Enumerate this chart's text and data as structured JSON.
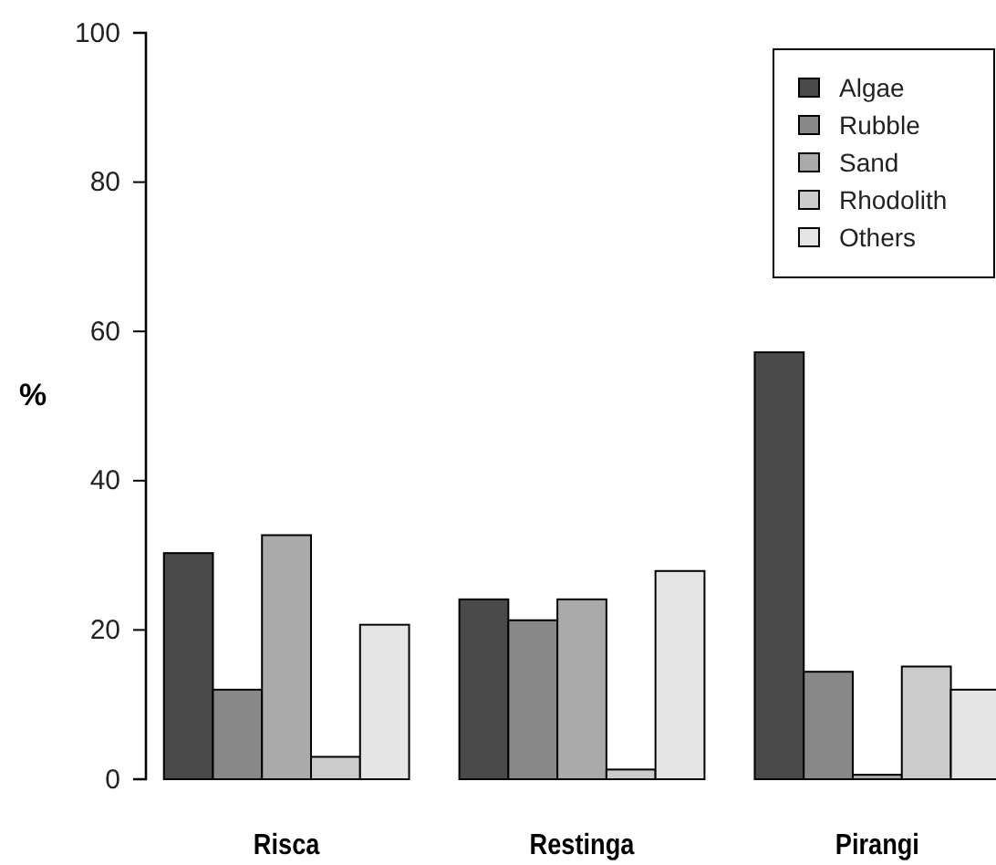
{
  "chart_data": {
    "type": "bar",
    "ylabel": "%",
    "categories": [
      "Risca",
      "Restinga",
      "Pirangi"
    ],
    "series": [
      {
        "name": "Algae",
        "color": "#4a4a4a",
        "values": [
          30.3,
          24.1,
          57.2
        ]
      },
      {
        "name": "Rubble",
        "color": "#888888",
        "values": [
          12.0,
          21.3,
          14.4
        ]
      },
      {
        "name": "Sand",
        "color": "#aaaaaa",
        "values": [
          32.7,
          24.1,
          0.6
        ]
      },
      {
        "name": "Rhodolith",
        "color": "#cccccc",
        "values": [
          3.0,
          1.3,
          15.1
        ]
      },
      {
        "name": "Others",
        "color": "#e5e5e5",
        "values": [
          20.7,
          27.9,
          12.0
        ]
      }
    ],
    "ylim": [
      0,
      100
    ],
    "yticks": [
      0,
      20,
      40,
      60,
      80,
      100
    ],
    "legend": "top right"
  }
}
